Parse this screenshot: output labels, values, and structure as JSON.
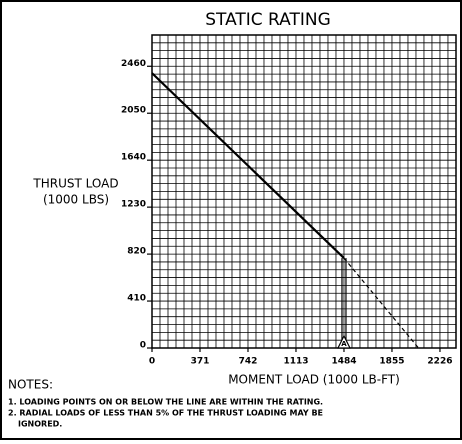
{
  "chart_data": {
    "type": "line",
    "title": "STATIC RATING",
    "ylabel": [
      "THRUST LOAD",
      "(1000 LBS)"
    ],
    "xlabel": "MOMENT LOAD (1000 LB-FT)",
    "xlim": [
      0,
      2350
    ],
    "ylim": [
      0,
      2733
    ],
    "xticks": [
      0,
      371,
      742,
      1113,
      1484,
      1855,
      2226
    ],
    "yticks": [
      0,
      410,
      820,
      1230,
      1640,
      2050,
      2460
    ],
    "grid": true,
    "series": [
      {
        "color": "#000000",
        "style": "solid",
        "x": [
          0,
          1484
        ],
        "values": [
          2400,
          785
        ]
      },
      {
        "color": "#000000",
        "style": "dashed",
        "x": [
          1484,
          2060
        ],
        "values": [
          785,
          0
        ]
      },
      {
        "color": "#000000",
        "style": "double",
        "x": [
          1484,
          1484
        ],
        "values": [
          785,
          0
        ]
      }
    ],
    "annotations": [
      {
        "text": "A",
        "x": 1484,
        "y": 0
      }
    ],
    "notes": [
      "NOTES:",
      "1. LOADING POINTS ON OR BELOW THE LINE ARE WITHIN THE RATING.",
      "2. RADIAL LOADS OF LESS THAN 5% OF THE THRUST LOADING MAY BE",
      "IGNORED."
    ]
  }
}
